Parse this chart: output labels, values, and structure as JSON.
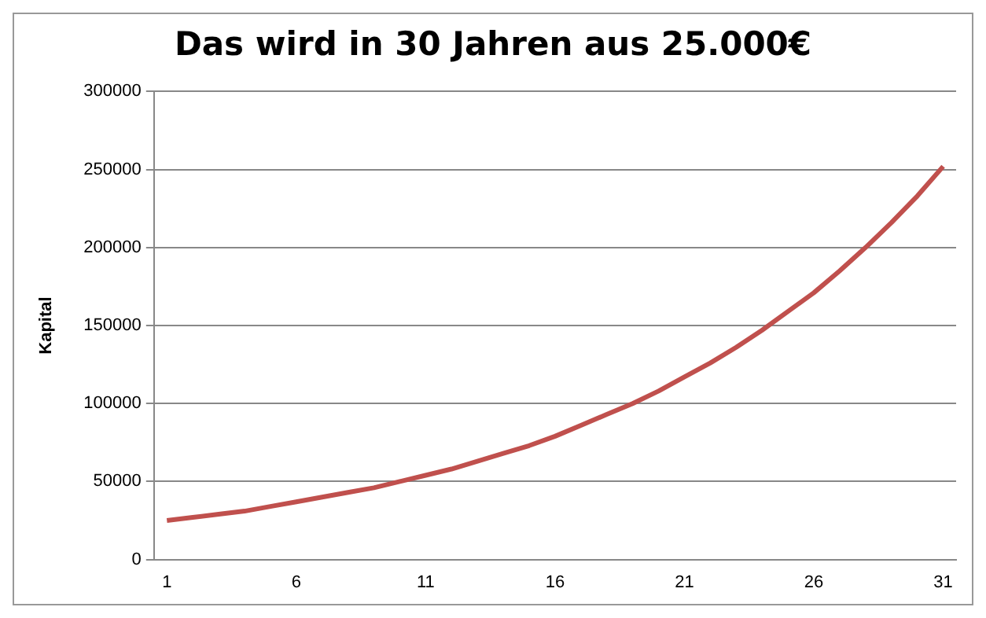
{
  "chart_data": {
    "type": "line",
    "title": "Das wird in 30 Jahren aus 25.000€",
    "ylabel": "Kapital",
    "categories": [
      "1",
      null,
      null,
      null,
      null,
      "6",
      null,
      null,
      null,
      null,
      "11",
      null,
      null,
      null,
      null,
      "16",
      null,
      null,
      null,
      null,
      "21",
      null,
      null,
      null,
      null,
      "26",
      null,
      null,
      null,
      null,
      "31"
    ],
    "series": [
      {
        "color": "#c0504d",
        "values": [
          25000,
          27000,
          29000,
          31000,
          34000,
          37000,
          40000,
          43000,
          46000,
          50000,
          54000,
          58000,
          63000,
          68000,
          73000,
          79000,
          86000,
          93000,
          100000,
          108000,
          117000,
          126000,
          136000,
          147000,
          159000,
          171000,
          185000,
          200000,
          216000,
          233000,
          252000
        ]
      }
    ],
    "ylim": [
      0,
      300000
    ],
    "yticks": [
      0,
      50000,
      100000,
      150000,
      200000,
      250000,
      300000
    ],
    "grid": "y",
    "legend": false,
    "marker": "none",
    "line_style": "solid"
  }
}
